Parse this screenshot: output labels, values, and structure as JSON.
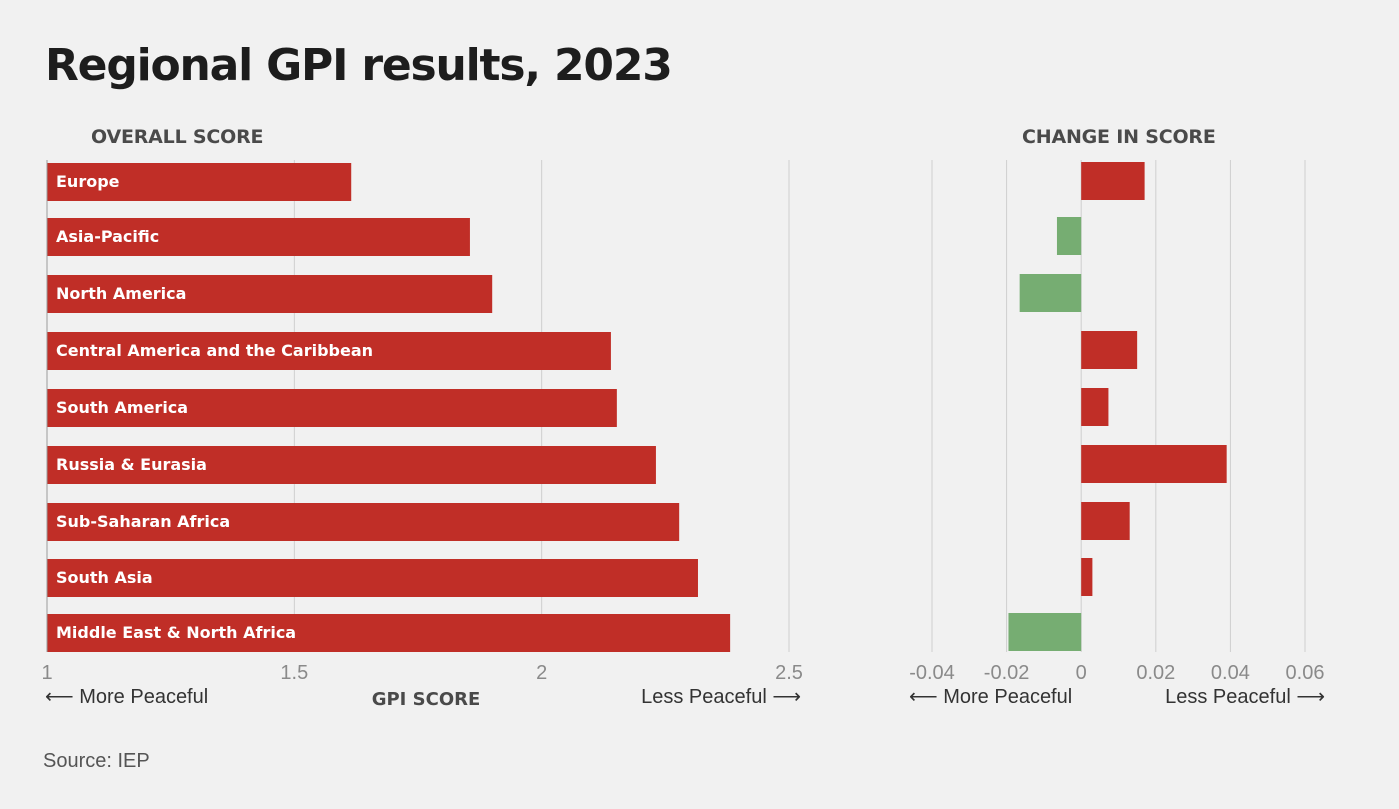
{
  "title": "Regional GPI results, 2023",
  "source": "Source: IEP",
  "colors": {
    "bar": "#c02e27",
    "positive": "#c02e27",
    "negative": "#76ad72",
    "grid": "#cfcfcf",
    "background": "#f1f1f1"
  },
  "chart_data": [
    {
      "type": "bar",
      "orientation": "horizontal",
      "subtitle": "OVERALL SCORE",
      "xlabel": "GPI SCORE",
      "direction_left": "⟵ More Peaceful",
      "direction_right": "Less Peaceful ⟶",
      "xlim": [
        1,
        2.5
      ],
      "ticks": [
        1,
        1.5,
        2,
        2.5
      ],
      "tick_labels": [
        "1",
        "1.5",
        "2",
        "2.5"
      ],
      "grid": true,
      "categories": [
        "Europe",
        "Asia-Pacific",
        "North America",
        "Central America and the Caribbean",
        "South America",
        "Russia & Eurasia",
        "Sub-Saharan Africa",
        "South Asia",
        "Middle East & North Africa"
      ],
      "values": [
        1.615,
        1.855,
        1.9,
        2.14,
        2.152,
        2.231,
        2.278,
        2.316,
        2.381
      ]
    },
    {
      "type": "bar",
      "orientation": "horizontal",
      "subtitle": "CHANGE IN SCORE",
      "direction_left": "⟵ More Peaceful",
      "direction_right": "Less Peaceful ⟶",
      "xlim": [
        -0.04,
        0.06
      ],
      "ticks": [
        -0.04,
        -0.02,
        0,
        0.02,
        0.04,
        0.06
      ],
      "tick_labels": [
        "-0.04",
        "-0.02",
        "0",
        "0.02",
        "0.04",
        "0.06"
      ],
      "grid": true,
      "categories": [
        "Europe",
        "Asia-Pacific",
        "North America",
        "Central America and the Caribbean",
        "South America",
        "Russia & Eurasia",
        "Sub-Saharan Africa",
        "South Asia",
        "Middle East & North Africa"
      ],
      "values": [
        0.017,
        -0.0065,
        -0.0165,
        0.015,
        0.0073,
        0.039,
        0.013,
        0.003,
        -0.0195
      ]
    }
  ]
}
